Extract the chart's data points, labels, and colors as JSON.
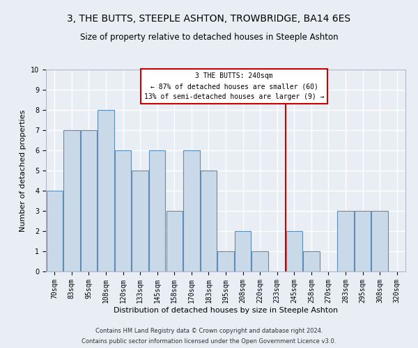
{
  "title": "3, THE BUTTS, STEEPLE ASHTON, TROWBRIDGE, BA14 6ES",
  "subtitle": "Size of property relative to detached houses in Steeple Ashton",
  "xlabel": "Distribution of detached houses by size in Steeple Ashton",
  "ylabel": "Number of detached properties",
  "categories": [
    "70sqm",
    "83sqm",
    "95sqm",
    "108sqm",
    "120sqm",
    "133sqm",
    "145sqm",
    "158sqm",
    "170sqm",
    "183sqm",
    "195sqm",
    "208sqm",
    "220sqm",
    "233sqm",
    "245sqm",
    "258sqm",
    "270sqm",
    "283sqm",
    "295sqm",
    "308sqm",
    "320sqm"
  ],
  "values": [
    4,
    7,
    7,
    8,
    6,
    5,
    6,
    3,
    6,
    5,
    1,
    2,
    1,
    0,
    2,
    1,
    0,
    3,
    3,
    3,
    0
  ],
  "bar_color": "#c9d9e8",
  "bar_edge_color": "#5b8db8",
  "background_color": "#e8eef4",
  "grid_color": "#ffffff",
  "annotation_text_line1": "3 THE BUTTS: 240sqm",
  "annotation_text_line2": "← 87% of detached houses are smaller (60)",
  "annotation_text_line3": "13% of semi-detached houses are larger (9) →",
  "annotation_box_color": "#cc0000",
  "footer_line1": "Contains HM Land Registry data © Crown copyright and database right 2024.",
  "footer_line2": "Contains public sector information licensed under the Open Government Licence v3.0.",
  "ylim": [
    0,
    10
  ],
  "yticks": [
    0,
    1,
    2,
    3,
    4,
    5,
    6,
    7,
    8,
    9,
    10
  ],
  "title_fontsize": 10,
  "subtitle_fontsize": 8.5,
  "ylabel_fontsize": 8,
  "xlabel_fontsize": 8,
  "tick_fontsize": 7,
  "annotation_fontsize": 7,
  "footer_fontsize": 6
}
